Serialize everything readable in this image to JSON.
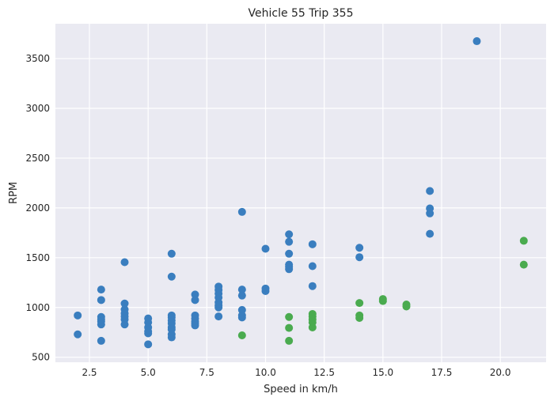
{
  "chart_data": {
    "type": "scatter",
    "title": "Vehicle 55 Trip 355",
    "xlabel": "Speed in km/h",
    "ylabel": "RPM",
    "xlim": [
      1.05,
      21.95
    ],
    "ylim": [
      450,
      3850
    ],
    "xticks": [
      "2.5",
      "5.0",
      "7.5",
      "10.0",
      "12.5",
      "15.0",
      "17.5",
      "20.0"
    ],
    "yticks": [
      "500",
      "1000",
      "1500",
      "2000",
      "2500",
      "3000",
      "3500"
    ],
    "grid": true,
    "background": "#eaeaf2",
    "series": [
      {
        "color": "#3a7ebf",
        "points": [
          [
            2,
            920
          ],
          [
            2,
            730
          ],
          [
            3,
            1180
          ],
          [
            3,
            1075
          ],
          [
            3,
            905
          ],
          [
            3,
            880
          ],
          [
            3,
            860
          ],
          [
            3,
            830
          ],
          [
            3,
            665
          ],
          [
            4,
            1455
          ],
          [
            4,
            1040
          ],
          [
            4,
            980
          ],
          [
            4,
            940
          ],
          [
            4,
            910
          ],
          [
            4,
            880
          ],
          [
            4,
            830
          ],
          [
            5,
            890
          ],
          [
            5,
            850
          ],
          [
            5,
            800
          ],
          [
            5,
            760
          ],
          [
            5,
            740
          ],
          [
            5,
            630
          ],
          [
            6,
            1540
          ],
          [
            6,
            1310
          ],
          [
            6,
            920
          ],
          [
            6,
            900
          ],
          [
            6,
            870
          ],
          [
            6,
            840
          ],
          [
            6,
            800
          ],
          [
            6,
            780
          ],
          [
            6,
            730
          ],
          [
            6,
            700
          ],
          [
            7,
            1130
          ],
          [
            7,
            1075
          ],
          [
            7,
            920
          ],
          [
            7,
            890
          ],
          [
            7,
            860
          ],
          [
            7,
            840
          ],
          [
            7,
            820
          ],
          [
            8,
            1210
          ],
          [
            8,
            1175
          ],
          [
            8,
            1140
          ],
          [
            8,
            1100
          ],
          [
            8,
            1050
          ],
          [
            8,
            1020
          ],
          [
            8,
            1000
          ],
          [
            8,
            910
          ],
          [
            9,
            1960
          ],
          [
            9,
            1180
          ],
          [
            9,
            1120
          ],
          [
            9,
            975
          ],
          [
            9,
            920
          ],
          [
            9,
            900
          ],
          [
            10,
            1590
          ],
          [
            10,
            1190
          ],
          [
            10,
            1165
          ],
          [
            11,
            1735
          ],
          [
            11,
            1660
          ],
          [
            11,
            1540
          ],
          [
            11,
            1430
          ],
          [
            11,
            1410
          ],
          [
            11,
            1385
          ],
          [
            12,
            1635
          ],
          [
            12,
            1415
          ],
          [
            12,
            1215
          ],
          [
            14,
            1600
          ],
          [
            14,
            1505
          ],
          [
            17,
            2170
          ],
          [
            17,
            1995
          ],
          [
            17,
            1945
          ],
          [
            17,
            1740
          ],
          [
            19,
            3675
          ]
        ]
      },
      {
        "color": "#4aab4f",
        "points": [
          [
            9,
            720
          ],
          [
            11,
            905
          ],
          [
            11,
            795
          ],
          [
            11,
            665
          ],
          [
            12,
            935
          ],
          [
            12,
            910
          ],
          [
            12,
            880
          ],
          [
            12,
            850
          ],
          [
            12,
            800
          ],
          [
            14,
            1045
          ],
          [
            14,
            920
          ],
          [
            14,
            895
          ],
          [
            15,
            1085
          ],
          [
            15,
            1065
          ],
          [
            16,
            1030
          ],
          [
            16,
            1010
          ],
          [
            21,
            1670
          ],
          [
            21,
            1430
          ]
        ]
      }
    ]
  }
}
